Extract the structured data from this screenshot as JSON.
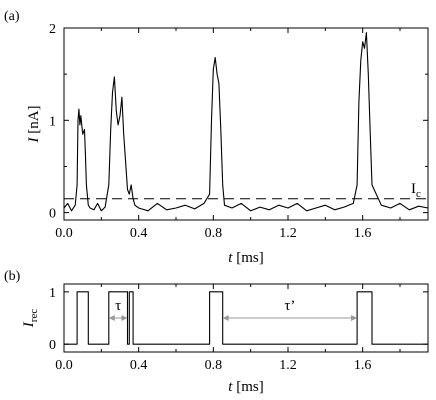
{
  "chart_data": [
    {
      "panel_label": "(a)",
      "type": "line",
      "xlabel": {
        "var": "t",
        "unit": "[ms]"
      },
      "ylabel": {
        "var": "I",
        "unit": "[nA]"
      },
      "xlim": [
        0,
        1.95
      ],
      "ylim": [
        -0.08,
        2.0
      ],
      "xticks": [
        0.0,
        0.4,
        0.8,
        1.2,
        1.6
      ],
      "xtick_labels": [
        "0.0",
        "0.4",
        "0.8",
        "1.2",
        "1.6"
      ],
      "yticks": [
        0,
        1,
        2
      ],
      "ytick_labels": [
        "0",
        "1",
        "2"
      ],
      "threshold": {
        "label": "I",
        "label_sub": "c",
        "value": 0.15,
        "style": "dashed"
      },
      "series": [
        {
          "x": [
            0.0,
            0.02,
            0.04,
            0.06,
            0.07,
            0.075,
            0.08,
            0.085,
            0.09,
            0.1,
            0.11,
            0.115,
            0.12,
            0.13,
            0.14,
            0.16,
            0.18,
            0.2,
            0.22,
            0.24,
            0.25,
            0.26,
            0.27,
            0.28,
            0.29,
            0.3,
            0.31,
            0.32,
            0.33,
            0.34,
            0.35,
            0.36,
            0.37,
            0.38,
            0.4,
            0.45,
            0.5,
            0.55,
            0.6,
            0.65,
            0.7,
            0.75,
            0.78,
            0.79,
            0.8,
            0.81,
            0.82,
            0.83,
            0.84,
            0.85,
            0.86,
            0.9,
            0.95,
            1.0,
            1.05,
            1.1,
            1.15,
            1.2,
            1.25,
            1.3,
            1.35,
            1.4,
            1.45,
            1.5,
            1.55,
            1.57,
            1.58,
            1.59,
            1.6,
            1.61,
            1.62,
            1.63,
            1.64,
            1.65,
            1.7,
            1.75,
            1.8,
            1.85,
            1.9,
            1.95
          ],
          "y": [
            0.05,
            0.1,
            0.02,
            0.08,
            0.3,
            1.0,
            1.12,
            0.95,
            1.05,
            0.85,
            0.9,
            0.6,
            0.3,
            0.08,
            0.05,
            0.03,
            0.1,
            0.02,
            0.06,
            0.3,
            0.9,
            1.3,
            1.47,
            1.1,
            0.95,
            1.05,
            1.25,
            0.85,
            0.55,
            0.25,
            0.2,
            0.3,
            0.15,
            0.08,
            0.05,
            0.02,
            0.1,
            0.03,
            0.05,
            0.08,
            0.04,
            0.1,
            0.2,
            1.0,
            1.55,
            1.68,
            1.5,
            1.4,
            0.9,
            0.3,
            0.08,
            0.05,
            0.1,
            0.02,
            0.06,
            0.03,
            0.08,
            0.05,
            0.1,
            0.02,
            0.05,
            0.08,
            0.03,
            0.06,
            0.1,
            0.3,
            1.2,
            1.65,
            1.85,
            1.78,
            1.95,
            1.5,
            0.9,
            0.3,
            0.08,
            0.05,
            0.1,
            0.03,
            0.07,
            0.05
          ]
        }
      ]
    },
    {
      "panel_label": "(b)",
      "type": "line",
      "xlabel": {
        "var": "t",
        "unit": "[ms]"
      },
      "ylabel": {
        "var": "I",
        "sub": "rec"
      },
      "xlim": [
        0,
        1.95
      ],
      "ylim": [
        -0.15,
        1.15
      ],
      "xticks": [
        0.0,
        0.4,
        0.8,
        1.2,
        1.6
      ],
      "xtick_labels": [
        "0.0",
        "0.4",
        "0.8",
        "1.2",
        "1.6"
      ],
      "yticks": [
        0,
        1
      ],
      "ytick_labels": [
        "0",
        "1"
      ],
      "annotations": [
        {
          "text": "τ",
          "x_from": 0.24,
          "x_to": 0.34,
          "y": 0.5
        },
        {
          "text": "τ’",
          "x_from": 0.85,
          "x_to": 1.57,
          "y": 0.5
        }
      ],
      "series": [
        {
          "x": [
            0.0,
            0.07,
            0.07,
            0.13,
            0.13,
            0.24,
            0.24,
            0.34,
            0.34,
            0.35,
            0.35,
            0.37,
            0.37,
            0.78,
            0.78,
            0.85,
            0.85,
            1.57,
            1.57,
            1.65,
            1.65,
            1.95
          ],
          "y": [
            0,
            0,
            1,
            1,
            0,
            0,
            1,
            1,
            0,
            0,
            1,
            1,
            0,
            0,
            1,
            1,
            0,
            0,
            1,
            1,
            0,
            0
          ]
        }
      ]
    }
  ]
}
